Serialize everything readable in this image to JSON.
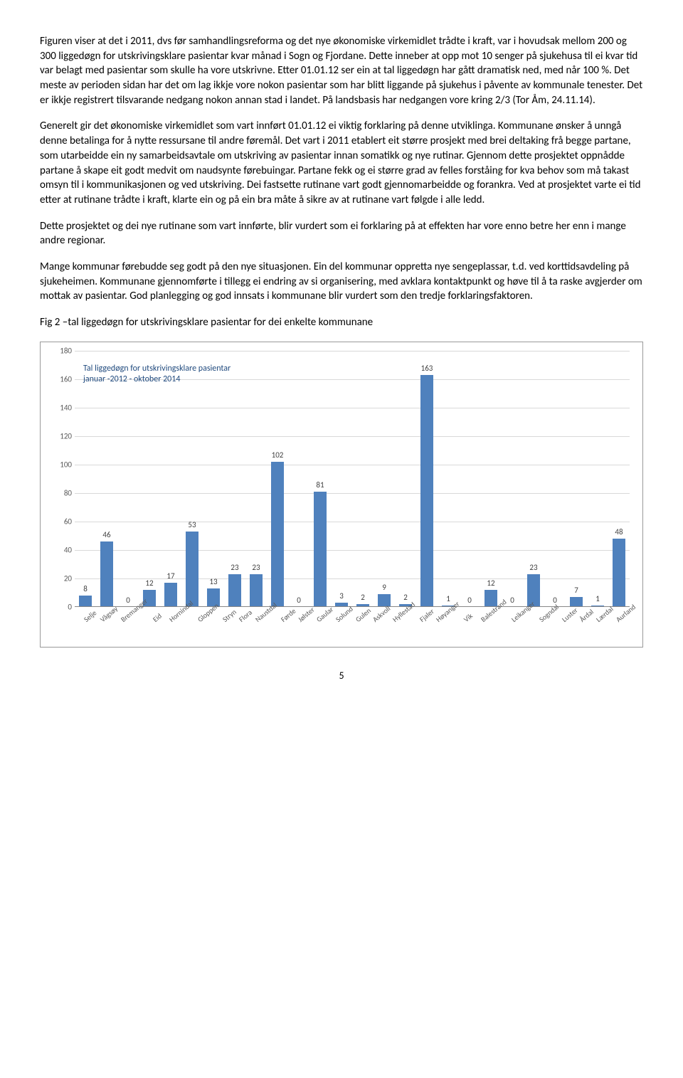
{
  "paragraphs": {
    "p1": "Figuren viser at det i 2011, dvs før samhandlingsreforma og det nye økonomiske virkemidlet trådte i kraft, var i hovudsak mellom 200 og 300 liggedøgn for utskrivingsklare pasientar kvar månad i Sogn og Fjordane. Dette inneber at opp mot 10 senger på sjukehusa til ei kvar tid var belagt med pasientar som skulle ha vore utskrivne. Etter 01.01.12 ser ein at tal liggedøgn har gått dramatisk ned, med når 100 %. Det meste av perioden sidan har det om lag ikkje vore nokon pasientar som har blitt liggande på sjukehus i påvente av kommunale tenester. Det er ikkje registrert tilsvarande nedgang nokon annan stad i landet. På landsbasis har nedgangen vore kring 2/3 (Tor Åm, 24.11.14).",
    "p2": "Generelt gir det økonomiske virkemidlet som vart innført 01.01.12 ei viktig forklaring på denne utviklinga. Kommunane ønsker å unngå denne betalinga for å nytte ressursane til andre føremål. Det vart i 2011 etablert eit større prosjekt med brei deltaking frå begge partane, som utarbeidde ein ny samarbeidsavtale om utskriving av pasientar innan somatikk og nye rutinar. Gjennom dette prosjektet oppnådde partane å skape eit godt medvit om naudsynte førebuingar. Partane fekk og ei større grad av felles forståing for kva behov som må takast omsyn til i kommunikasjonen og ved utskriving. Dei fastsette rutinane vart godt gjennomarbeidde og forankra. Ved at prosjektet varte ei tid etter at rutinane trådte i kraft, klarte ein og på ein bra måte å sikre av at rutinane vart følgde i alle ledd.",
    "p3": "Dette prosjektet og dei nye rutinane som vart innførte, blir vurdert som ei forklaring på at effekten har vore enno betre her enn i mange andre regionar.",
    "p4": "Mange kommunar førebudde seg godt på den nye situasjonen. Ein del kommunar oppretta nye sengeplassar, t.d. ved korttidsavdeling på sjukeheimen. Kommunane gjennomførte i tillegg ei endring av si organisering, med avklara kontaktpunkt og høve til å ta raske avgjerder om mottak av pasientar. God planlegging og god innsats i kommunane blir vurdert som den tredje forklaringsfaktoren.",
    "fig_caption": "Fig 2 –tal liggedøgn for utskrivingsklare pasientar for dei enkelte kommunane"
  },
  "chart": {
    "type": "bar",
    "title_line1": "Tal liggedøgn for utskrivingsklare pasientar",
    "title_line2": "januar -2012 - oktober 2014",
    "bar_color": "#4f81bd",
    "grid_color": "#d9d9d9",
    "text_color": "#595959",
    "ylim_max": 180,
    "ytick_step": 20,
    "yticks": [
      0,
      20,
      40,
      60,
      80,
      100,
      120,
      140,
      160,
      180
    ],
    "categories": [
      "Selje",
      "Vågsøy",
      "Bremanger",
      "Eid",
      "Hornindal",
      "Gloppen",
      "Stryn",
      "Flora",
      "Naustdal",
      "Førde",
      "Jølster",
      "Gaular",
      "Solund",
      "Gulen",
      "Askvoll",
      "Hyllestad",
      "Fjaler",
      "Høyanger",
      "Vik",
      "Balestrand",
      "Leikanger",
      "Sogndal",
      "Luster",
      "Årdal",
      "Lærdal",
      "Aurland"
    ],
    "values": [
      8,
      46,
      0,
      12,
      17,
      53,
      13,
      23,
      23,
      102,
      0,
      81,
      3,
      2,
      9,
      2,
      163,
      1,
      0,
      12,
      0,
      23,
      0,
      7,
      1,
      48
    ]
  },
  "page_number": "5"
}
